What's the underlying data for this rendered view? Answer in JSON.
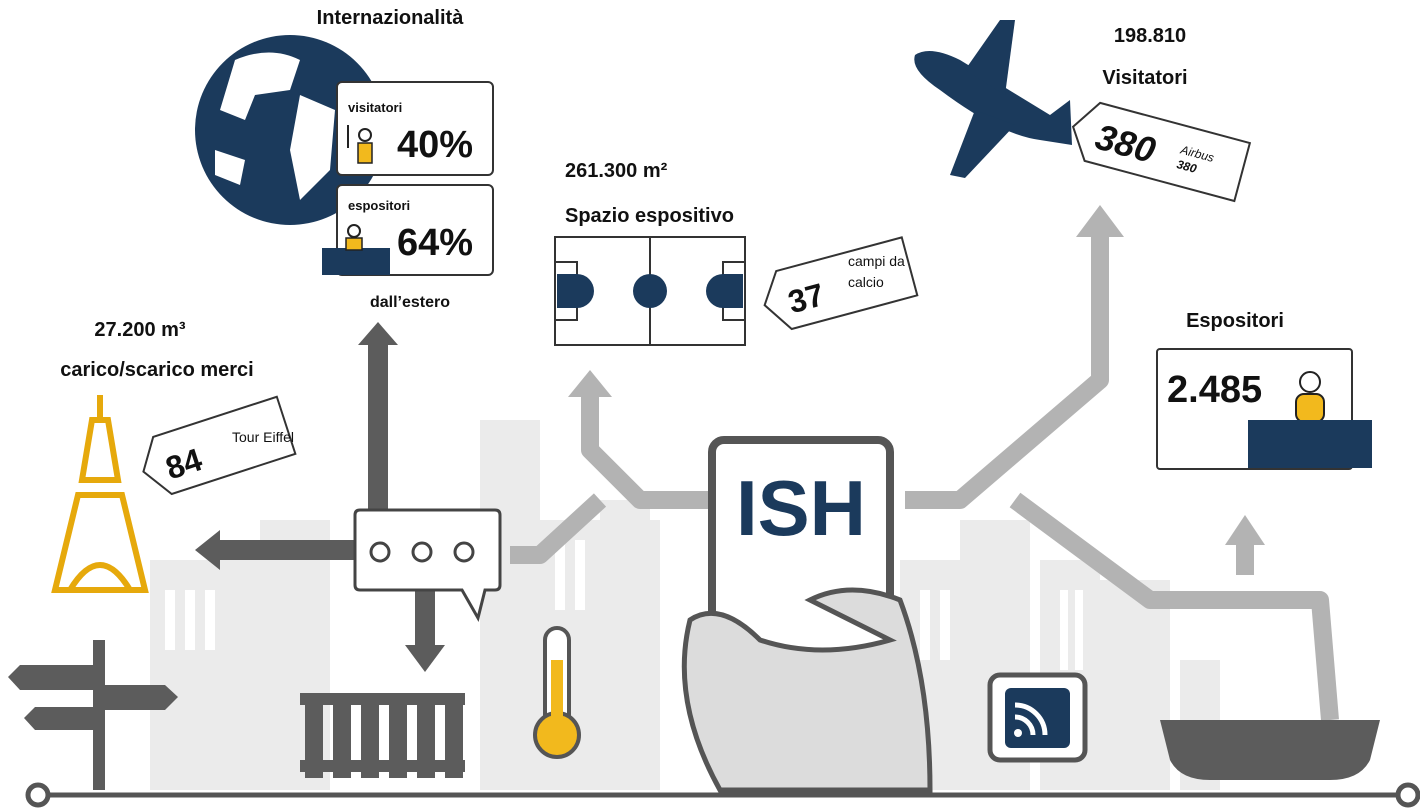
{
  "internationality": {
    "title": "Internazionalità",
    "visitors_label": "visitatori",
    "visitors_value": "40%",
    "exhibitors_label": "espositori",
    "exhibitors_value": "64%",
    "footer": "dall’estero"
  },
  "logistics": {
    "value": "27.200 m³",
    "label": "carico/scarico merci",
    "tag_number": "84",
    "tag_text": "Tour Eiffel"
  },
  "space": {
    "value": "261.300 m²",
    "label": "Spazio espositivo",
    "tag_number": "37",
    "tag_text_lines": [
      "campi da",
      "calcio"
    ]
  },
  "visitors": {
    "value": "198.810",
    "label": "Visitatori",
    "tag_number": "380",
    "tag_brand": "Airbus",
    "tag_model": "380"
  },
  "exhibitors": {
    "label": "Espositori",
    "value": "2.485"
  },
  "phone": {
    "logo": "ISH"
  }
}
